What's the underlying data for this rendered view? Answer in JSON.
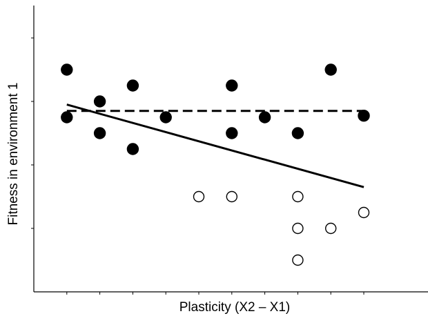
{
  "chart_data": {
    "type": "scatter",
    "title": "",
    "xlabel": "Plasticity (X2 – X1)",
    "ylabel": "Fitness in environment 1",
    "xlim": [
      0,
      11
    ],
    "ylim": [
      0,
      9
    ],
    "x_ticks": [
      1,
      2,
      3,
      4,
      5,
      6,
      7,
      8,
      9,
      10
    ],
    "y_ticks": [
      2,
      4,
      6,
      8
    ],
    "tick_labels_shown": false,
    "grid": false,
    "legend": "none",
    "series": [
      {
        "marker": "filled-circle",
        "color": "#000000",
        "points": [
          [
            1,
            7
          ],
          [
            1,
            5.5
          ],
          [
            2,
            6
          ],
          [
            2,
            5
          ],
          [
            3,
            6.5
          ],
          [
            3,
            4.5
          ],
          [
            4,
            5.5
          ],
          [
            6,
            6.5
          ],
          [
            6,
            5
          ],
          [
            7,
            5.5
          ],
          [
            8,
            5
          ],
          [
            9,
            7
          ],
          [
            10,
            5.55
          ]
        ]
      },
      {
        "marker": "open-circle",
        "color": "#000000",
        "points": [
          [
            5,
            3
          ],
          [
            6,
            3
          ],
          [
            8,
            3
          ],
          [
            8,
            2
          ],
          [
            8,
            1
          ],
          [
            9,
            2
          ],
          [
            10,
            2.5
          ]
        ]
      }
    ],
    "lines": [
      {
        "style": "dashed",
        "color": "#000000",
        "x": [
          1,
          10
        ],
        "y": [
          5.7,
          5.7
        ]
      },
      {
        "style": "solid",
        "color": "#000000",
        "x": [
          1,
          10
        ],
        "y": [
          5.9,
          3.3
        ]
      }
    ]
  }
}
